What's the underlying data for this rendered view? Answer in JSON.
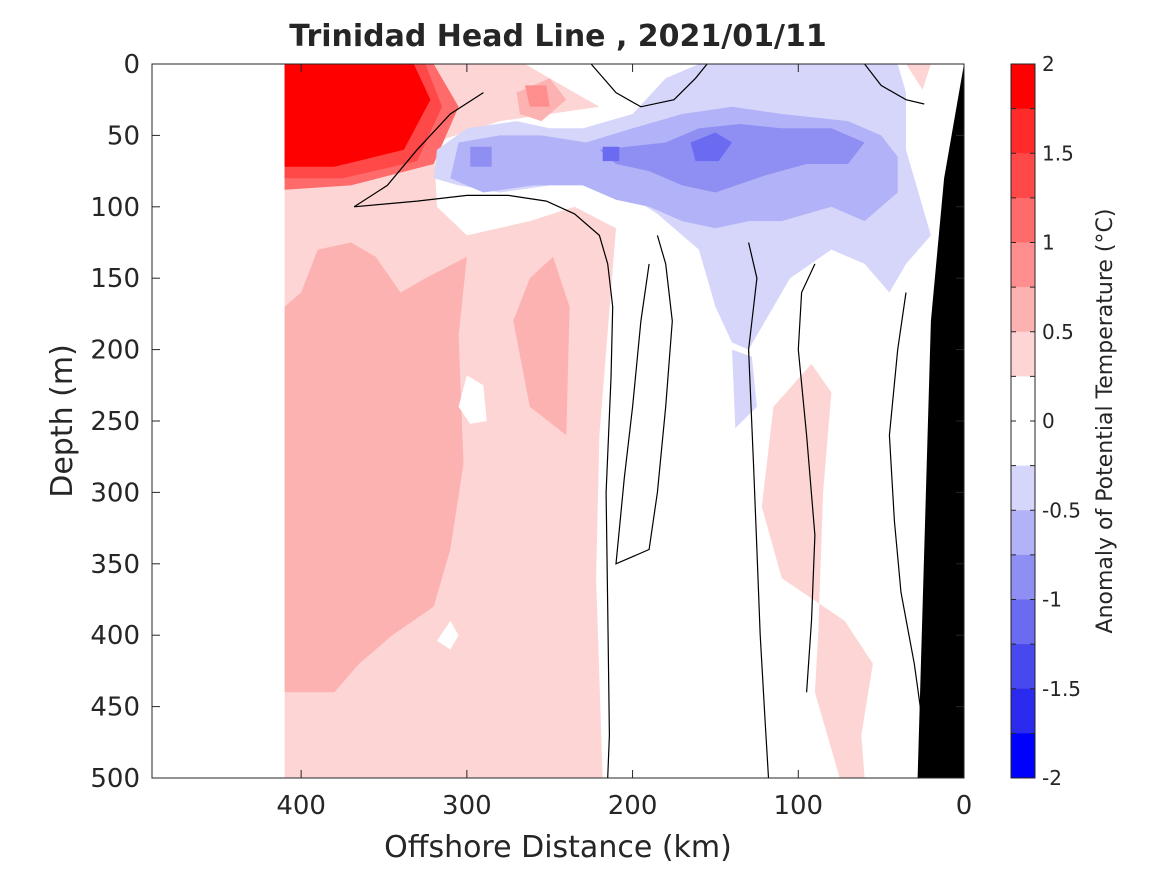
{
  "chart_data": {
    "type": "heatmap",
    "title": "Trinidad Head Line , 2021/01/11",
    "xlabel": "Offshore Distance (km)",
    "ylabel": "Depth (m)",
    "xlim": [
      490,
      0
    ],
    "ylim": [
      0,
      500
    ],
    "x_reversed": true,
    "y_reversed": true,
    "x_ticks": [
      400,
      300,
      200,
      100,
      0
    ],
    "y_ticks": [
      0,
      50,
      100,
      150,
      200,
      250,
      300,
      350,
      400,
      450,
      500
    ],
    "colorbar": {
      "label": "Anomaly of Potential Temperature (°C)",
      "range": [
        -2,
        2
      ],
      "step": 0.25,
      "ticks": [
        "2",
        "1.5",
        "1",
        "0.5",
        "0",
        "-0.5",
        "-1",
        "-1.5",
        "-2"
      ],
      "colors": [
        "#ff0000",
        "#ff2b2b",
        "#ff4848",
        "#ff6b6b",
        "#ff8f8f",
        "#fdb2b2",
        "#fdd5d5",
        "#ffffff",
        "#ffffff",
        "#d6d6fb",
        "#b2b2f8",
        "#8f8ff3",
        "#6b6bf1",
        "#4848ef",
        "#2b2bf0",
        "#0000ff"
      ]
    },
    "data_extent_km": [
      410,
      20
    ],
    "regions": [
      {
        "level": 0.25,
        "color": "#fdd5d5",
        "pts": [
          [
            410,
            0
          ],
          [
            265,
            0
          ],
          [
            235,
            20
          ],
          [
            220,
            30
          ],
          [
            280,
            40
          ],
          [
            320,
            55
          ],
          [
            318,
            100
          ],
          [
            300,
            120
          ],
          [
            262,
            110
          ],
          [
            235,
            100
          ],
          [
            210,
            115
          ],
          [
            220,
            260
          ],
          [
            222,
            360
          ],
          [
            218,
            500
          ],
          [
            410,
            500
          ]
        ]
      },
      {
        "level": 0.25,
        "color": "#fdd5d5",
        "pts": [
          [
            35,
            0
          ],
          [
            20,
            0
          ],
          [
            25,
            18
          ]
        ]
      },
      {
        "level": 0.25,
        "color": "#fdd5d5",
        "pts": [
          [
            92,
            210
          ],
          [
            115,
            240
          ],
          [
            122,
            310
          ],
          [
            110,
            360
          ],
          [
            72,
            390
          ],
          [
            55,
            420
          ],
          [
            62,
            470
          ],
          [
            60,
            500
          ],
          [
            75,
            500
          ],
          [
            90,
            440
          ],
          [
            88,
            400
          ],
          [
            85,
            300
          ],
          [
            80,
            230
          ]
        ]
      },
      {
        "level": 0.5,
        "color": "#fdb2b2",
        "pts": [
          [
            410,
            170
          ],
          [
            400,
            160
          ],
          [
            390,
            130
          ],
          [
            370,
            125
          ],
          [
            355,
            135
          ],
          [
            340,
            160
          ],
          [
            325,
            150
          ],
          [
            300,
            135
          ],
          [
            305,
            190
          ],
          [
            302,
            280
          ],
          [
            310,
            340
          ],
          [
            320,
            380
          ],
          [
            345,
            400
          ],
          [
            365,
            420
          ],
          [
            380,
            440
          ],
          [
            410,
            440
          ]
        ]
      },
      {
        "level": 0.5,
        "color": "#fdb2b2",
        "pts": [
          [
            262,
            150
          ],
          [
            272,
            180
          ],
          [
            262,
            240
          ],
          [
            240,
            260
          ],
          [
            238,
            170
          ],
          [
            248,
            135
          ]
        ]
      },
      {
        "level": 0.5,
        "color": "#fdb2b2",
        "pts": [
          [
            270,
            20
          ],
          [
            250,
            10
          ],
          [
            240,
            25
          ],
          [
            255,
            40
          ],
          [
            268,
            35
          ]
        ]
      },
      {
        "level": 0.75,
        "color": "#ff8f8f",
        "pts": [
          [
            265,
            15
          ],
          [
            252,
            15
          ],
          [
            250,
            30
          ],
          [
            262,
            30
          ]
        ]
      },
      {
        "level": 1.25,
        "color": "#ff6b6b",
        "pts": [
          [
            410,
            0
          ],
          [
            320,
            0
          ],
          [
            305,
            30
          ],
          [
            320,
            70
          ],
          [
            370,
            85
          ],
          [
            410,
            88
          ]
        ]
      },
      {
        "level": 1.5,
        "color": "#ff4848",
        "pts": [
          [
            410,
            0
          ],
          [
            325,
            0
          ],
          [
            315,
            30
          ],
          [
            330,
            68
          ],
          [
            375,
            80
          ],
          [
            410,
            80
          ]
        ]
      },
      {
        "level": 2.0,
        "color": "#ff0000",
        "pts": [
          [
            410,
            0
          ],
          [
            332,
            0
          ],
          [
            322,
            25
          ],
          [
            338,
            60
          ],
          [
            380,
            72
          ],
          [
            410,
            72
          ]
        ]
      },
      {
        "level": -0.25,
        "color": "#d6d6fb",
        "pts": [
          [
            230,
            45
          ],
          [
            200,
            35
          ],
          [
            180,
            10
          ],
          [
            160,
            0
          ],
          [
            40,
            0
          ],
          [
            35,
            20
          ],
          [
            35,
            60
          ],
          [
            25,
            100
          ],
          [
            20,
            120
          ],
          [
            35,
            140
          ],
          [
            45,
            160
          ],
          [
            60,
            140
          ],
          [
            80,
            130
          ],
          [
            105,
            150
          ],
          [
            130,
            200
          ],
          [
            140,
            195
          ],
          [
            150,
            170
          ],
          [
            160,
            130
          ],
          [
            170,
            120
          ],
          [
            185,
            105
          ],
          [
            205,
            90
          ],
          [
            225,
            80
          ],
          [
            250,
            85
          ],
          [
            280,
            90
          ],
          [
            305,
            85
          ],
          [
            320,
            80
          ],
          [
            318,
            60
          ],
          [
            300,
            45
          ],
          [
            270,
            40
          ],
          [
            250,
            45
          ]
        ]
      },
      {
        "level": -0.5,
        "color": "#b2b2f8",
        "pts": [
          [
            228,
            55
          ],
          [
            200,
            45
          ],
          [
            170,
            35
          ],
          [
            140,
            30
          ],
          [
            110,
            35
          ],
          [
            70,
            40
          ],
          [
            50,
            50
          ],
          [
            40,
            65
          ],
          [
            40,
            90
          ],
          [
            60,
            110
          ],
          [
            80,
            100
          ],
          [
            110,
            110
          ],
          [
            130,
            110
          ],
          [
            150,
            115
          ],
          [
            170,
            110
          ],
          [
            190,
            100
          ],
          [
            210,
            95
          ],
          [
            230,
            85
          ],
          [
            260,
            85
          ],
          [
            290,
            90
          ],
          [
            310,
            80
          ],
          [
            305,
            55
          ],
          [
            280,
            50
          ],
          [
            255,
            50
          ]
        ]
      },
      {
        "level": -0.75,
        "color": "#8f8ff3",
        "pts": [
          [
            180,
            55
          ],
          [
            160,
            45
          ],
          [
            135,
            42
          ],
          [
            110,
            45
          ],
          [
            80,
            45
          ],
          [
            60,
            55
          ],
          [
            70,
            70
          ],
          [
            95,
            70
          ],
          [
            120,
            78
          ],
          [
            150,
            90
          ],
          [
            170,
            85
          ],
          [
            190,
            75
          ],
          [
            210,
            70
          ],
          [
            220,
            60
          ]
        ]
      },
      {
        "level": -1.0,
        "color": "#6b6bf1",
        "pts": [
          [
            165,
            55
          ],
          [
            150,
            48
          ],
          [
            140,
            55
          ],
          [
            148,
            68
          ],
          [
            162,
            68
          ]
        ]
      },
      {
        "level": -1.0,
        "color": "#6b6bf1",
        "pts": [
          [
            218,
            58
          ],
          [
            208,
            58
          ],
          [
            208,
            68
          ],
          [
            218,
            68
          ]
        ]
      },
      {
        "level": -0.75,
        "color": "#8f8ff3",
        "pts": [
          [
            298,
            58
          ],
          [
            285,
            58
          ],
          [
            285,
            72
          ],
          [
            298,
            72
          ]
        ]
      },
      {
        "level": -0.25,
        "color": "#d6d6fb",
        "pts": [
          [
            140,
            200
          ],
          [
            128,
            205
          ],
          [
            125,
            240
          ],
          [
            138,
            255
          ]
        ]
      }
    ],
    "white_holes": [
      [
        [
          300,
          218
        ],
        [
          290,
          225
        ],
        [
          288,
          250
        ],
        [
          298,
          252
        ],
        [
          305,
          240
        ]
      ],
      [
        [
          310,
          390
        ],
        [
          305,
          400
        ],
        [
          310,
          410
        ],
        [
          318,
          404
        ]
      ]
    ],
    "zero_contours": [
      [
        [
          290,
          20
        ],
        [
          310,
          35
        ],
        [
          330,
          60
        ],
        [
          348,
          85
        ],
        [
          368,
          100
        ],
        [
          330,
          96
        ],
        [
          300,
          92
        ],
        [
          275,
          92
        ],
        [
          252,
          96
        ],
        [
          235,
          105
        ],
        [
          220,
          120
        ],
        [
          215,
          140
        ],
        [
          212,
          170
        ],
        [
          213,
          220
        ],
        [
          216,
          300
        ],
        [
          215,
          380
        ],
        [
          214,
          470
        ],
        [
          215,
          500
        ]
      ],
      [
        [
          225,
          0
        ],
        [
          210,
          20
        ],
        [
          195,
          30
        ],
        [
          175,
          25
        ],
        [
          162,
          10
        ],
        [
          155,
          0
        ]
      ],
      [
        [
          185,
          120
        ],
        [
          180,
          140
        ],
        [
          176,
          180
        ],
        [
          180,
          240
        ],
        [
          185,
          300
        ],
        [
          190,
          340
        ],
        [
          210,
          350
        ],
        [
          205,
          290
        ],
        [
          200,
          240
        ],
        [
          195,
          180
        ],
        [
          190,
          140
        ]
      ],
      [
        [
          130,
          125
        ],
        [
          125,
          150
        ],
        [
          130,
          200
        ],
        [
          127,
          280
        ],
        [
          125,
          340
        ],
        [
          123,
          400
        ],
        [
          120,
          460
        ],
        [
          118,
          500
        ]
      ],
      [
        [
          90,
          140
        ],
        [
          98,
          160
        ],
        [
          100,
          200
        ],
        [
          95,
          260
        ],
        [
          90,
          330
        ],
        [
          92,
          390
        ],
        [
          95,
          440
        ]
      ],
      [
        [
          35,
          160
        ],
        [
          40,
          200
        ],
        [
          45,
          260
        ],
        [
          42,
          320
        ],
        [
          38,
          370
        ],
        [
          30,
          420
        ],
        [
          24,
          470
        ]
      ],
      [
        [
          60,
          0
        ],
        [
          50,
          15
        ],
        [
          35,
          25
        ],
        [
          24,
          28
        ]
      ]
    ],
    "land_mask": [
      [
        28,
        500
      ],
      [
        0,
        500
      ],
      [
        0,
        0
      ],
      [
        12,
        80
      ],
      [
        20,
        180
      ],
      [
        28,
        500
      ]
    ]
  }
}
